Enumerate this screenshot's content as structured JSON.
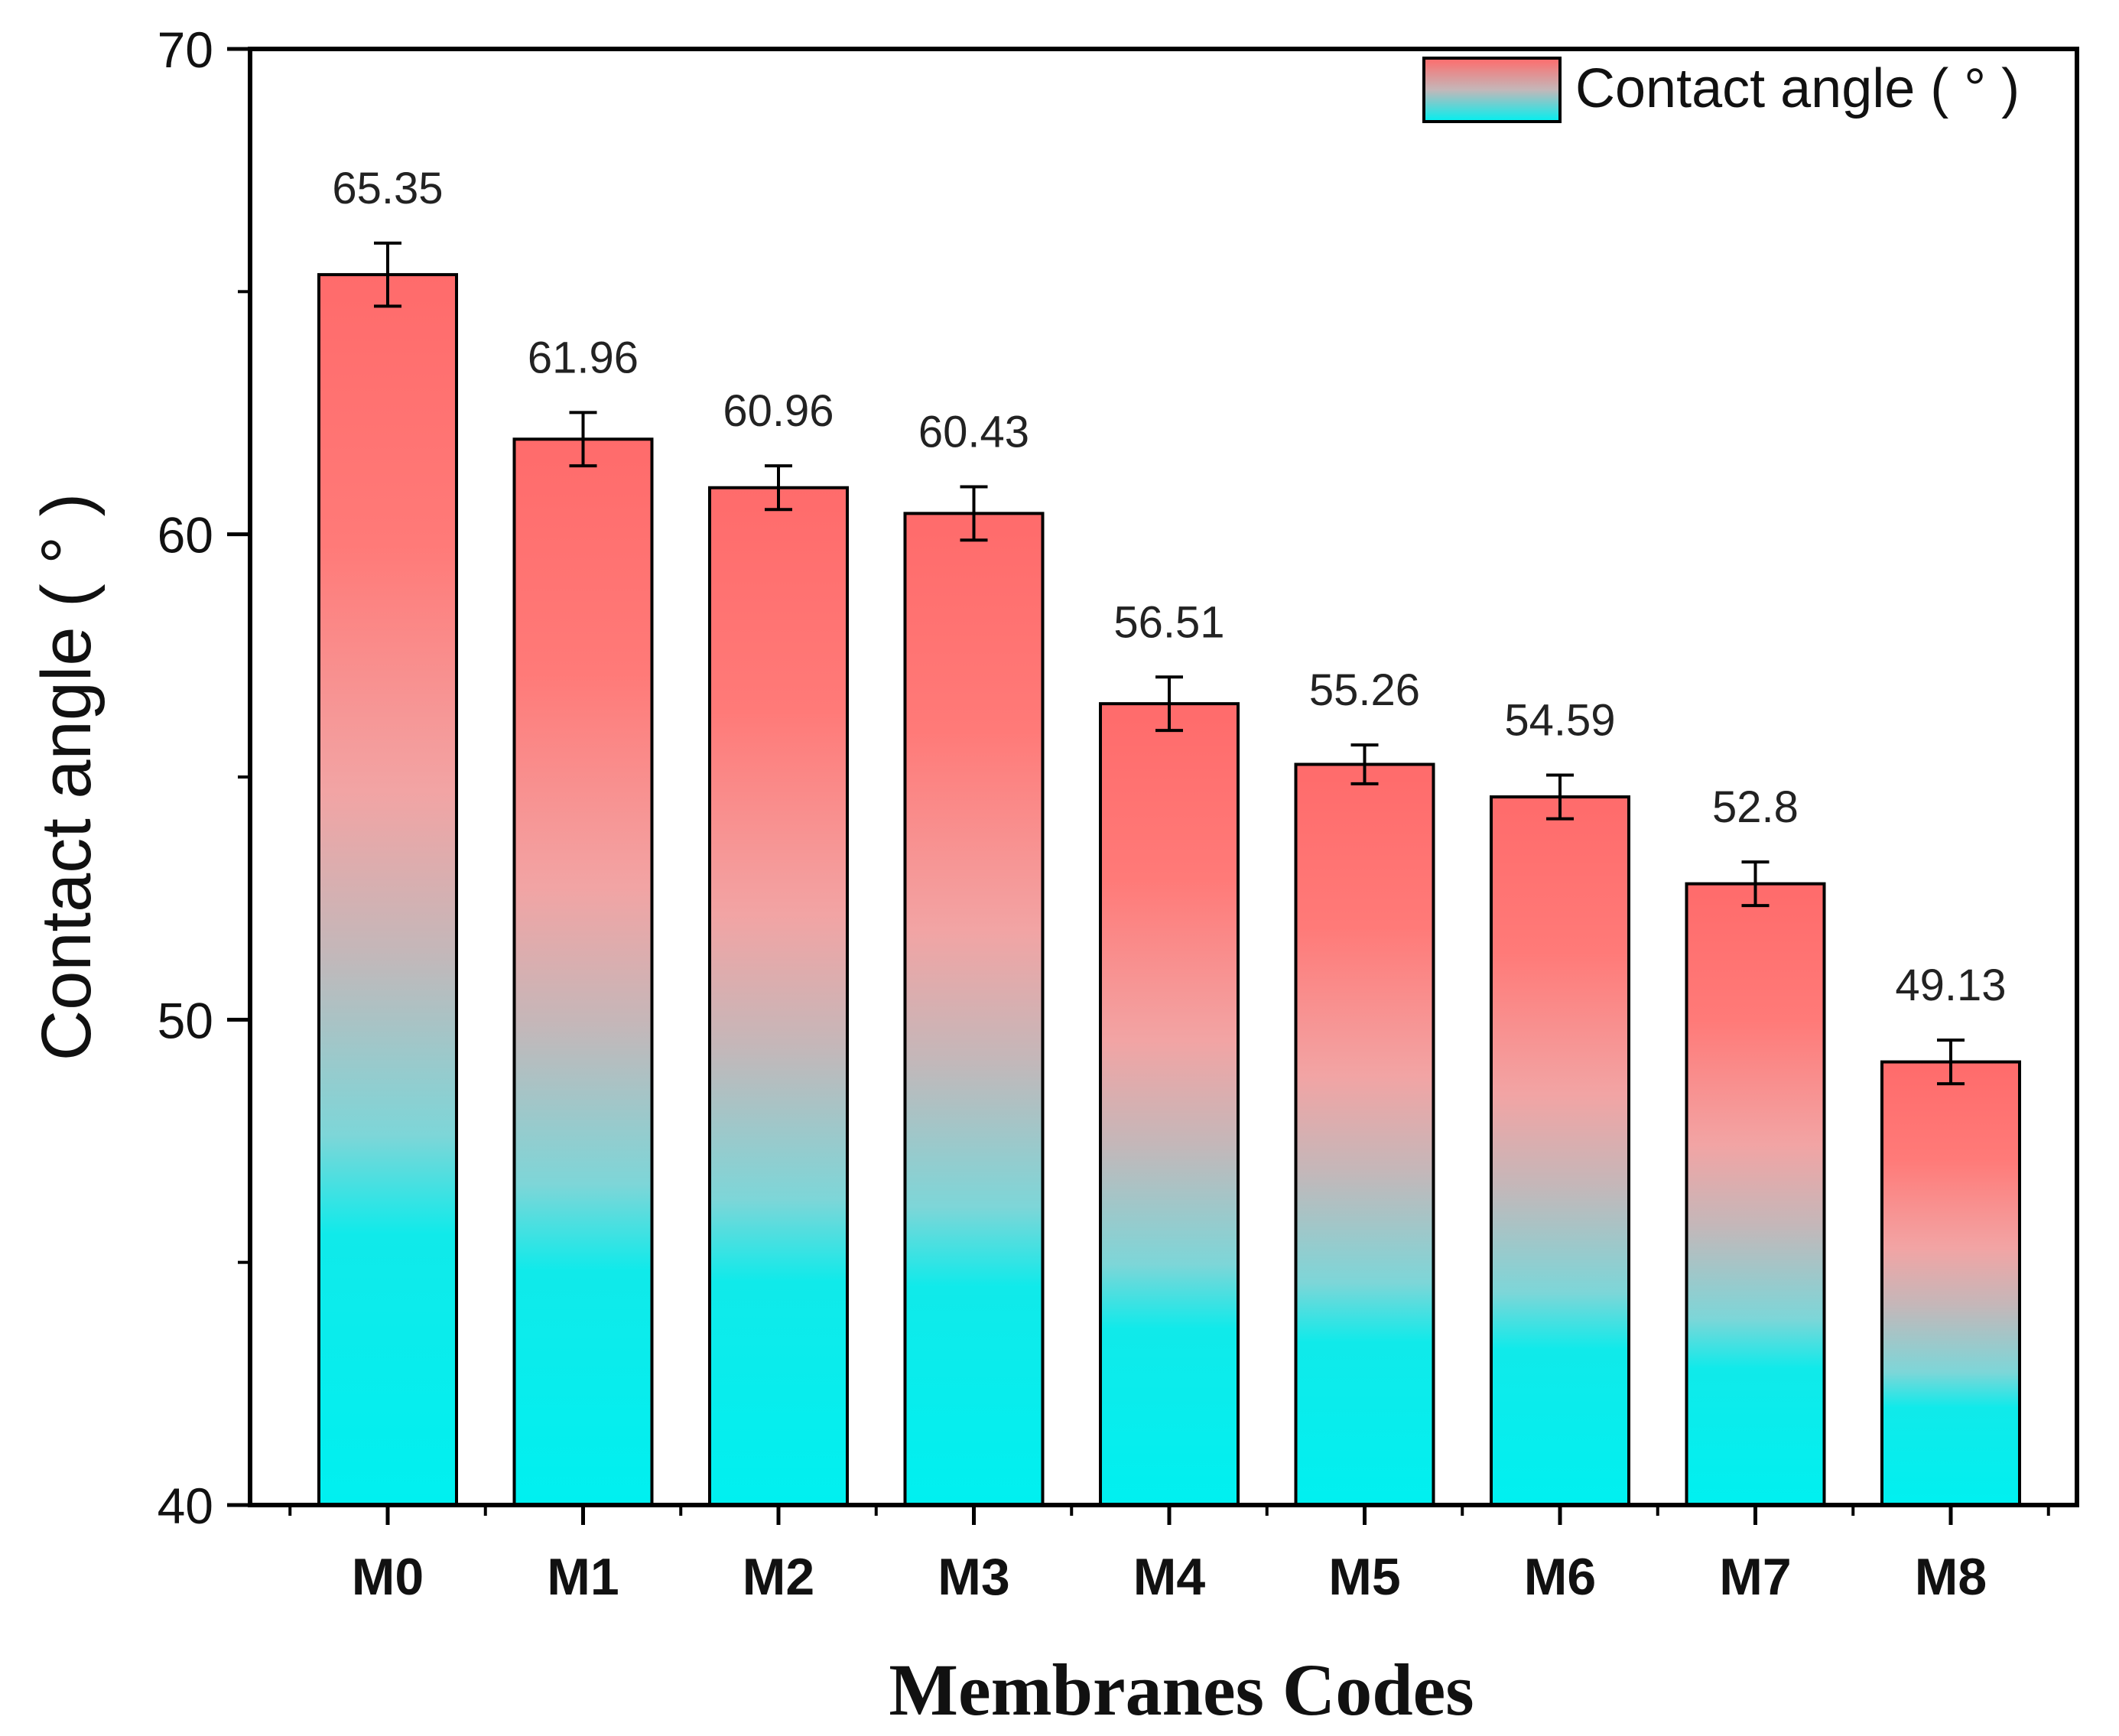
{
  "chart_data": {
    "type": "bar",
    "title": "",
    "xlabel": "Membranes Codes",
    "ylabel": "Contact angle ( ° )",
    "ylim": [
      40,
      70
    ],
    "yticks": [
      40,
      50,
      60,
      70
    ],
    "y_minor_step": 5,
    "categories": [
      "M0",
      "M1",
      "M2",
      "M3",
      "M4",
      "M5",
      "M6",
      "M7",
      "M8"
    ],
    "series": [
      {
        "name": "Contact angle ( ° )",
        "values": [
          65.35,
          61.96,
          60.96,
          60.43,
          56.51,
          55.26,
          54.59,
          52.8,
          49.13
        ],
        "errors": [
          0.65,
          0.55,
          0.45,
          0.55,
          0.55,
          0.4,
          0.45,
          0.45,
          0.45
        ],
        "value_labels": [
          "65.35",
          "61.96",
          "60.96",
          "60.43",
          "56.51",
          "55.26",
          "54.59",
          "52.8",
          "49.13"
        ]
      }
    ],
    "legend": {
      "position": "top-right",
      "label": "Contact angle ( ° )"
    },
    "colors": {
      "top": "#ff6b6b",
      "bottom": "#00f0f0",
      "mid": "#c9b4b6",
      "axis": "#000000"
    },
    "grid": false
  }
}
